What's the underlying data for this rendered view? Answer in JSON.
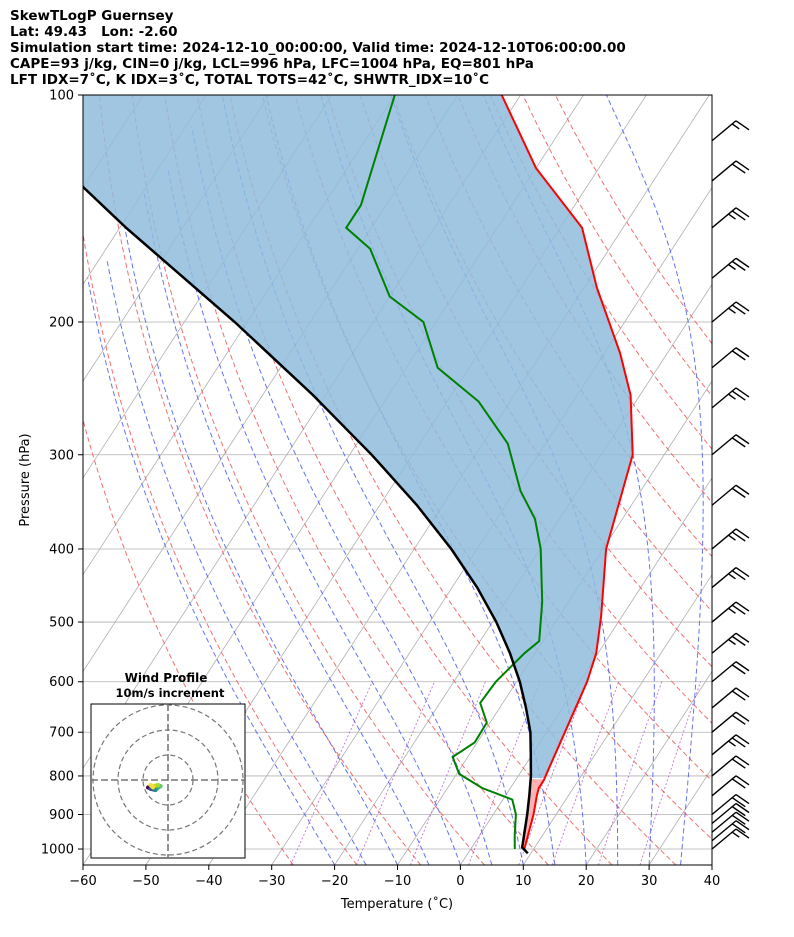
{
  "header": {
    "line1": "SkewTLogP Guernsey",
    "line2": "Lat: 49.43   Lon: -2.60",
    "line3": "Simulation start time: 2024-12-10_00:00:00, Valid time: 2024-12-10T06:00:00.00",
    "line4": "CAPE=93 j/kg, CIN=0 j/kg, LCL=996 hPa, LFC=1004 hPa, EQ=801 hPa",
    "line5": "LFT IDX=7˚C, K IDX=3˚C, TOTAL TOTS=42˚C, SHWTR_IDX=10˚C"
  },
  "chart_data": {
    "type": "line",
    "subtype": "skewT-logP",
    "xlabel": "Temperature (˚C)",
    "ylabel": "Pressure (hPa)",
    "xlim": [
      -60,
      40
    ],
    "ylim": [
      1050,
      100
    ],
    "yscale": "log",
    "grid": true,
    "x_ticks": [
      -60,
      -50,
      -40,
      -30,
      -20,
      -10,
      0,
      10,
      20,
      30,
      40
    ],
    "y_ticks": [
      1000,
      900,
      800,
      700,
      600,
      500,
      400,
      300,
      200,
      100
    ],
    "series": [
      {
        "role": "temperature",
        "color": "#ff0000",
        "points": [
          [
            8.5,
            1000
          ],
          [
            6.4,
            900
          ],
          [
            5,
            850
          ],
          [
            4.5,
            830
          ],
          [
            4.5,
            810
          ],
          [
            4.2,
            790
          ],
          [
            2.9,
            700
          ],
          [
            1.2,
            600
          ],
          [
            -0.3,
            550
          ],
          [
            -1.8,
            520
          ],
          [
            -3.4,
            490
          ],
          [
            -9.5,
            400
          ],
          [
            -15,
            300
          ],
          [
            -21.5,
            250
          ],
          [
            -27.5,
            220
          ],
          [
            -38,
            180
          ],
          [
            -46.5,
            150
          ],
          [
            -60,
            125
          ],
          [
            -73,
            100
          ]
        ]
      },
      {
        "role": "dewpoint",
        "color": "#008000",
        "points": [
          [
            7,
            1000
          ],
          [
            5.6,
            960
          ],
          [
            3.6,
            900
          ],
          [
            1.5,
            860
          ],
          [
            -4.5,
            830
          ],
          [
            -9.6,
            795
          ],
          [
            -12.4,
            755
          ],
          [
            -10.4,
            722
          ],
          [
            -10.5,
            680
          ],
          [
            -13.6,
            640
          ],
          [
            -13.3,
            600
          ],
          [
            -11.7,
            550
          ],
          [
            -10.6,
            530
          ],
          [
            -14.2,
            470
          ],
          [
            -19.9,
            400
          ],
          [
            -23.9,
            365
          ],
          [
            -29.1,
            335
          ],
          [
            -36,
            290
          ],
          [
            -45,
            255
          ],
          [
            -55,
            230
          ],
          [
            -62,
            200
          ],
          [
            -70,
            185
          ],
          [
            -78,
            160
          ],
          [
            -84,
            150
          ],
          [
            -84,
            140
          ],
          [
            -90,
            100
          ]
        ]
      },
      {
        "role": "parcel",
        "color": "#000000",
        "points": [
          [
            9.5,
            1013
          ],
          [
            8,
            995
          ],
          [
            6.8,
            950
          ],
          [
            5.4,
            900
          ],
          [
            3.8,
            850
          ],
          [
            2,
            800
          ],
          [
            -0.2,
            750
          ],
          [
            -2.6,
            700
          ],
          [
            -5.8,
            650
          ],
          [
            -9.5,
            600
          ],
          [
            -14,
            550
          ],
          [
            -19.4,
            500
          ],
          [
            -26,
            450
          ],
          [
            -34.1,
            400
          ],
          [
            -44.1,
            350
          ],
          [
            -56.5,
            300
          ],
          [
            -72,
            250
          ],
          [
            -92,
            200
          ],
          [
            -119,
            150
          ],
          [
            -155,
            100
          ]
        ]
      }
    ],
    "cape_fill_color": "#8fbcdd",
    "cin_fill_color": "#f4a7a7",
    "hodograph": {
      "title": "Wind Profile",
      "subtitle": "10m/s increment",
      "ring_increment": 10,
      "points": [
        [
          -8,
          -3
        ],
        [
          -7,
          -3.5
        ],
        [
          -5,
          -4
        ],
        [
          -4,
          -3
        ],
        [
          -3,
          -2.5
        ],
        [
          -4,
          -2
        ],
        [
          -6,
          -2.5
        ],
        [
          -7,
          -2
        ],
        [
          -6,
          -3
        ]
      ]
    },
    "wind_barbs": [
      {
        "p": 1000,
        "spd": 15
      },
      {
        "p": 975,
        "spd": 20
      },
      {
        "p": 950,
        "spd": 20
      },
      {
        "p": 925,
        "spd": 20
      },
      {
        "p": 900,
        "spd": 20
      },
      {
        "p": 850,
        "spd": 20
      },
      {
        "p": 800,
        "spd": 20
      },
      {
        "p": 750,
        "spd": 25
      },
      {
        "p": 700,
        "spd": 20
      },
      {
        "p": 650,
        "spd": 20
      },
      {
        "p": 600,
        "spd": 20
      },
      {
        "p": 550,
        "spd": 25
      },
      {
        "p": 500,
        "spd": 25
      },
      {
        "p": 450,
        "spd": 25
      },
      {
        "p": 400,
        "spd": 25
      },
      {
        "p": 350,
        "spd": 20
      },
      {
        "p": 300,
        "spd": 20
      },
      {
        "p": 260,
        "spd": 25
      },
      {
        "p": 230,
        "spd": 20
      },
      {
        "p": 200,
        "spd": 25
      },
      {
        "p": 175,
        "spd": 25
      },
      {
        "p": 150,
        "spd": 25
      },
      {
        "p": 130,
        "spd": 20
      },
      {
        "p": 115,
        "spd": 15
      }
    ]
  }
}
